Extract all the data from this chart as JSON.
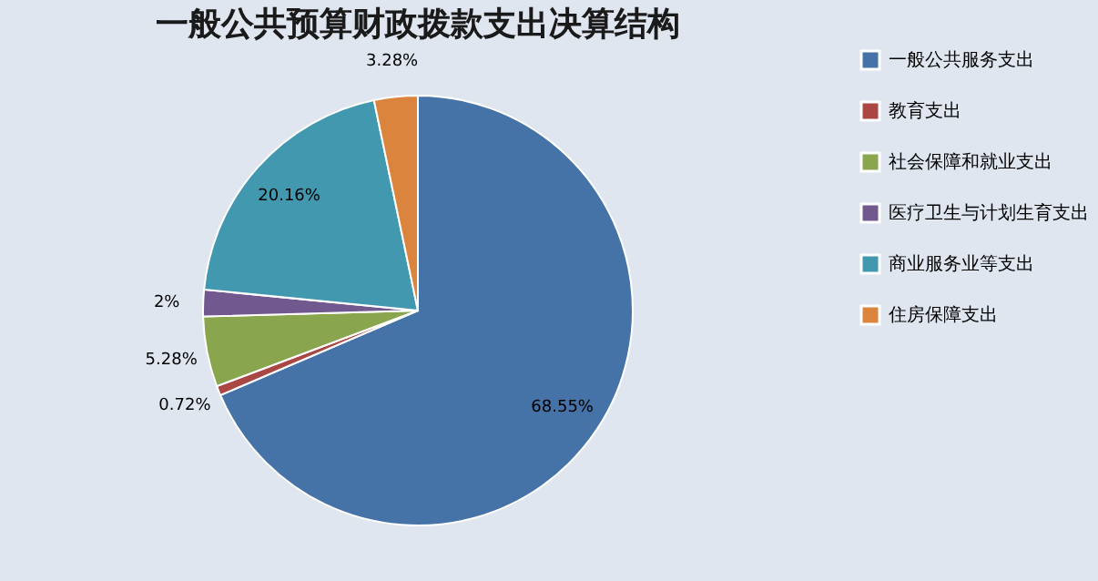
{
  "chart_data": {
    "type": "pie",
    "title": "一般公共预算财政拨款支出决算结构",
    "categories": [
      "一般公共服务支出",
      "教育支出",
      "社会保障和就业支出",
      "医疗卫生与计划生育支出",
      "商业服务业等支出",
      "住房保障支出"
    ],
    "values": [
      68.55,
      0.72,
      5.28,
      2,
      20.16,
      3.28
    ],
    "colors": [
      "#4572a7",
      "#aa4643",
      "#89a54e",
      "#71588f",
      "#4198af",
      "#db843d"
    ],
    "value_labels": [
      "68.55%",
      "0.72%",
      "5.28%",
      "2%",
      "20.16%",
      "3.28%"
    ],
    "legend": "right"
  }
}
